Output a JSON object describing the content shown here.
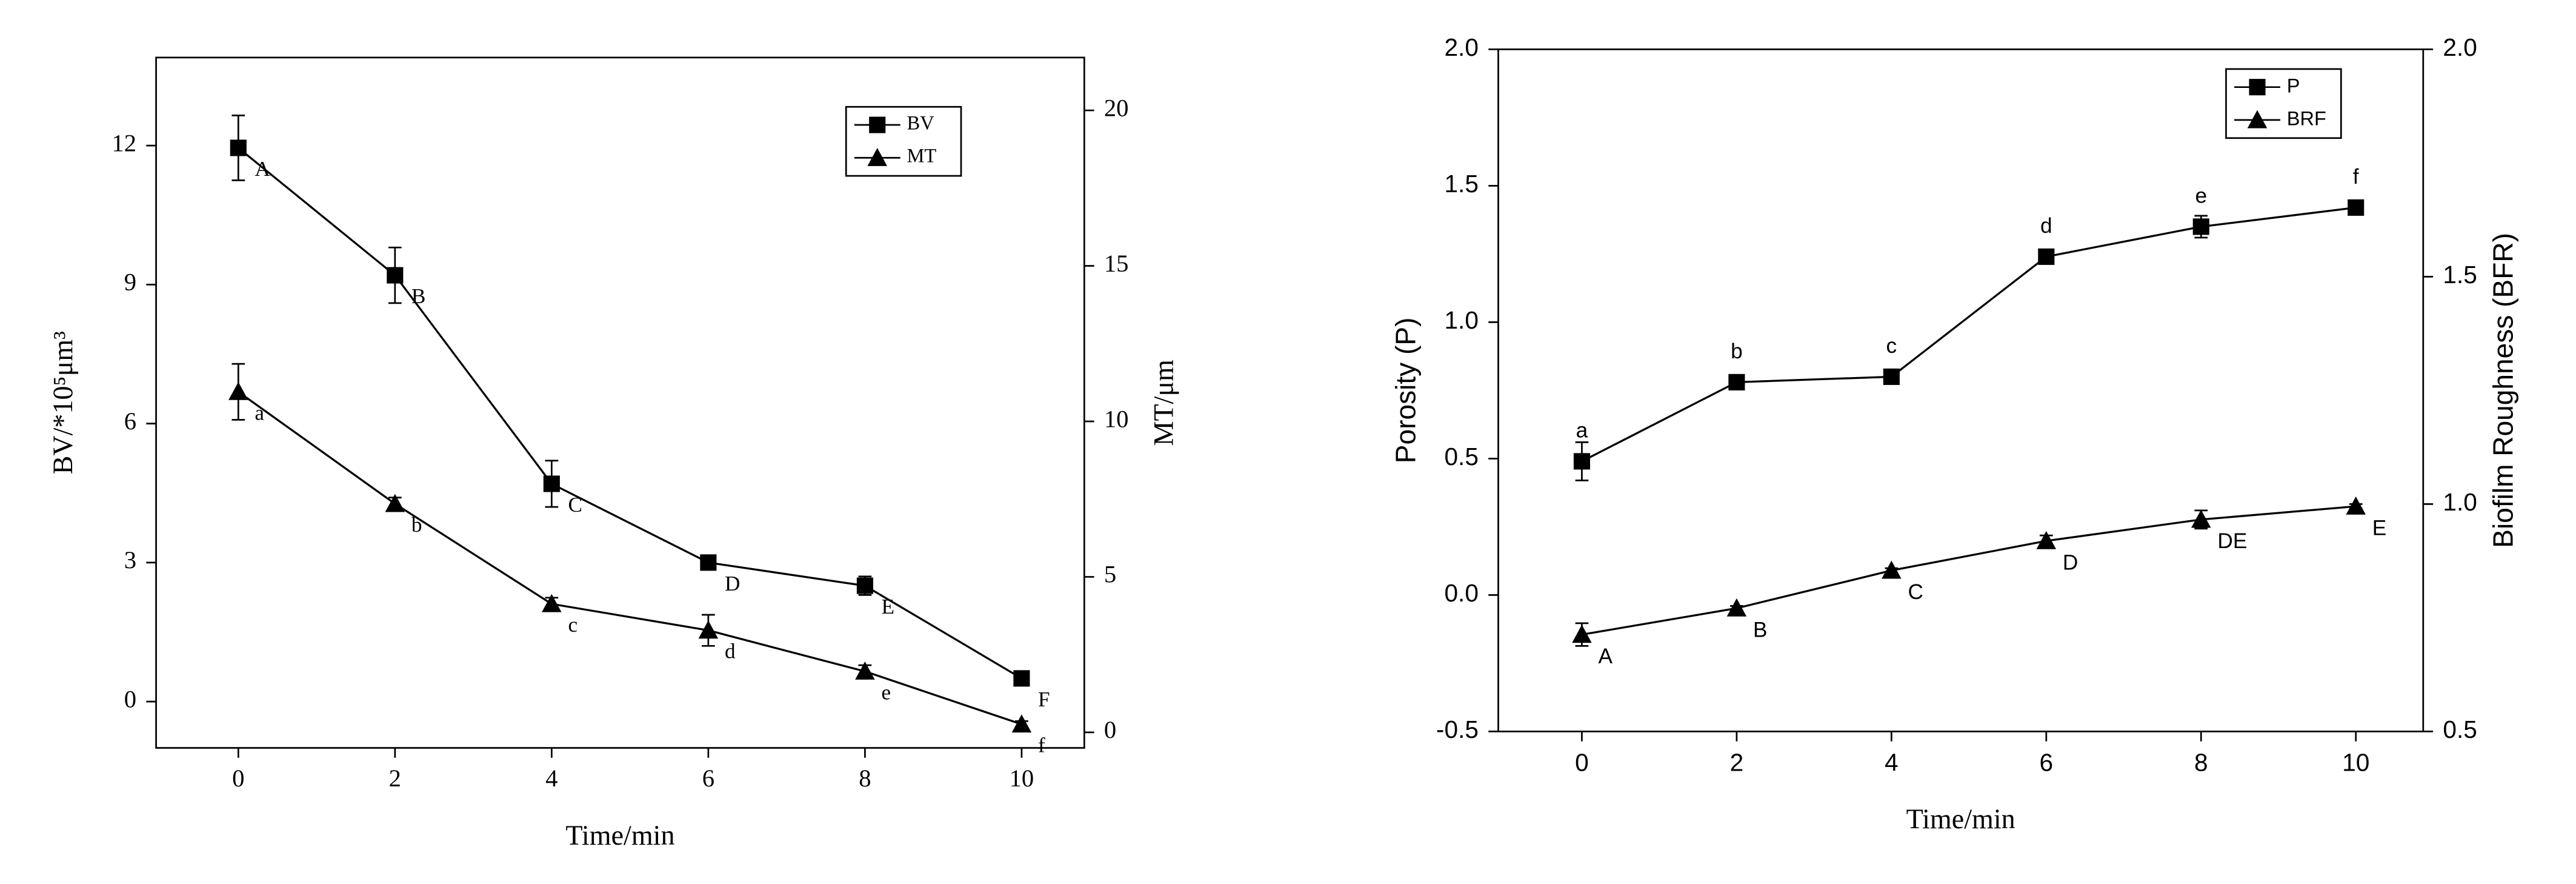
{
  "chart_data": [
    {
      "type": "line",
      "xlabel": "Time/min",
      "ylabel": "BV/*10⁵μm³",
      "y2label": "MT/μm",
      "x": [
        0,
        2,
        4,
        6,
        8,
        10
      ],
      "xlim": [
        -1.05,
        10.8
      ],
      "xticks": [
        0,
        2,
        4,
        6,
        8,
        10
      ],
      "ylim": [
        -1,
        13.9
      ],
      "yticks": [
        0,
        3,
        6,
        9,
        12
      ],
      "y2lim": [
        -0.5,
        21.7
      ],
      "y2ticks": [
        0,
        5,
        10,
        15,
        20
      ],
      "legend": "upper right",
      "series": [
        {
          "name": "BV",
          "marker": "square",
          "color": "#000000",
          "values": [
            11.95,
            9.2,
            4.7,
            3.0,
            2.5,
            0.5
          ],
          "errors": [
            0.7,
            0.6,
            0.5,
            0.1,
            0.2,
            0.1
          ],
          "point_labels": [
            "A",
            "B",
            "C",
            "D",
            "E",
            "F"
          ]
        },
        {
          "name": "MT",
          "axis": "y2",
          "marker": "triangle",
          "color": "#000000",
          "values": [
            10.95,
            7.35,
            4.13,
            3.28,
            1.96,
            0.26
          ],
          "errors": [
            0.9,
            0.2,
            0.2,
            0.5,
            0.2,
            0.1
          ],
          "point_labels": [
            "a",
            "b",
            "c",
            "d",
            "e",
            "f"
          ]
        }
      ]
    },
    {
      "type": "line",
      "xlabel": "Time/min",
      "ylabel": "Porosity (P)",
      "y2label": "Biofilm Roughness (BFR)",
      "x": [
        0,
        2,
        4,
        6,
        8,
        10
      ],
      "xlim": [
        -1.08,
        10.87
      ],
      "xticks": [
        0,
        2,
        4,
        6,
        8,
        10
      ],
      "ylim": [
        -0.5,
        2
      ],
      "yticks": [
        {
          "value": -0.5,
          "label": "-0.5"
        },
        {
          "value": 0,
          "label": "0.0"
        },
        0.5,
        {
          "value": 1,
          "label": "1.0"
        },
        1.5,
        {
          "value": 2,
          "label": "2.0"
        }
      ],
      "y2lim": [
        0.5,
        2
      ],
      "y2ticks": [
        0.5,
        {
          "value": 1,
          "label": "1.0"
        },
        1.5,
        {
          "value": 2,
          "label": "2.0"
        }
      ],
      "legend": "upper right",
      "series": [
        {
          "name": "P",
          "marker": "square",
          "color": "#000000",
          "values": [
            0.49,
            0.78,
            0.8,
            1.24,
            1.35,
            1.42
          ],
          "errors": [
            0.07,
            0.01,
            0.01,
            0.01,
            0.04,
            0.02
          ],
          "point_labels": [
            "a",
            "b",
            "c",
            "d",
            "e",
            "f"
          ]
        },
        {
          "name": "BRF",
          "axis": "y2",
          "marker": "triangle",
          "color": "#000000",
          "values": [
            0.713,
            0.771,
            0.854,
            0.919,
            0.966,
            0.995
          ],
          "errors": [
            0.025,
            0.005,
            0.005,
            0.012,
            0.02,
            0.005
          ],
          "point_labels": [
            "A",
            "B",
            "C",
            "D",
            "DE",
            "E"
          ]
        }
      ]
    }
  ]
}
